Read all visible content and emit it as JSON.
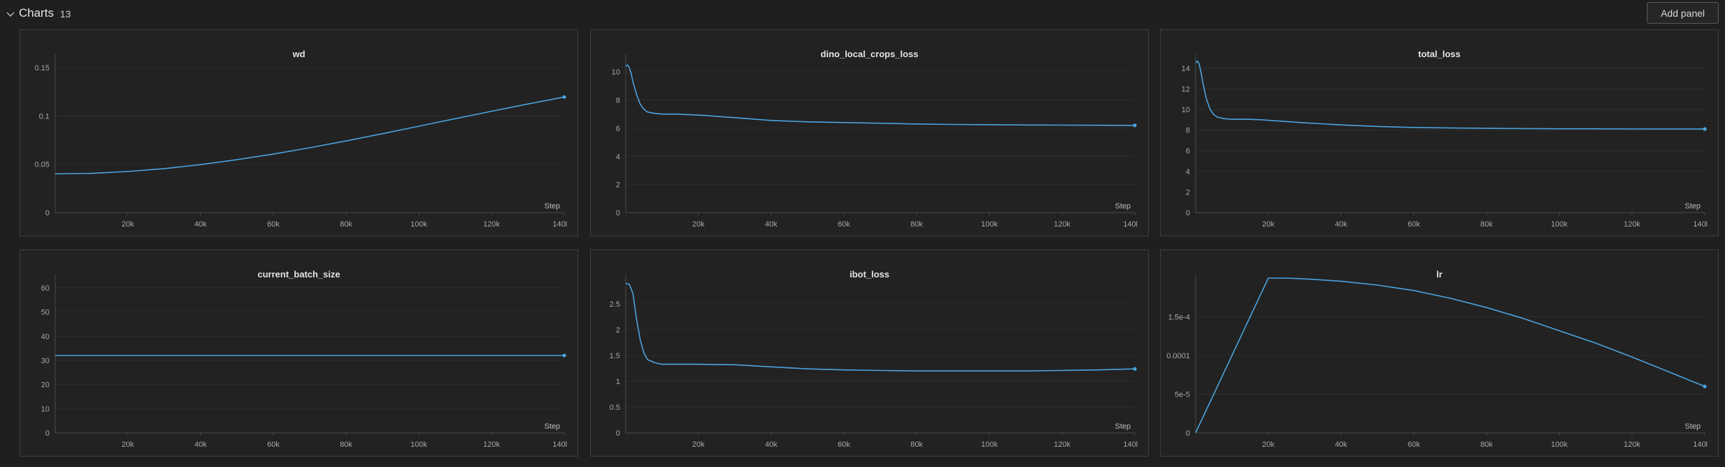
{
  "section": {
    "title": "Charts",
    "count": "13",
    "add_panel_label": "Add panel"
  },
  "colors": {
    "line": "#4aa3df",
    "grid": "#2e2e2e",
    "axis": "#4a4a4a"
  },
  "chart_data": [
    {
      "type": "line",
      "title": "wd",
      "xlabel": "Step",
      "xlim": [
        0,
        140000
      ],
      "x_ticks": [
        20000,
        40000,
        60000,
        80000,
        100000,
        120000,
        140000
      ],
      "x_tick_labels": [
        "20k",
        "40k",
        "60k",
        "80k",
        "100k",
        "120k",
        "140l"
      ],
      "ylim": [
        0,
        0.16
      ],
      "y_ticks": [
        0,
        0.05,
        0.1,
        0.15
      ],
      "y_tick_labels": [
        "0",
        "0.05",
        "0.1",
        "0.15"
      ],
      "series": [
        {
          "x": [
            0,
            10000,
            20000,
            30000,
            40000,
            50000,
            60000,
            70000,
            80000,
            90000,
            100000,
            110000,
            120000,
            130000,
            140000
          ],
          "values": [
            0.04,
            0.0406,
            0.0425,
            0.0455,
            0.0496,
            0.0547,
            0.0605,
            0.067,
            0.0741,
            0.0816,
            0.0893,
            0.0971,
            0.1048,
            0.1123,
            0.1195
          ]
        }
      ]
    },
    {
      "type": "line",
      "title": "dino_local_crops_loss",
      "xlabel": "Step",
      "xlim": [
        0,
        140000
      ],
      "x_ticks": [
        20000,
        40000,
        60000,
        80000,
        100000,
        120000,
        140000
      ],
      "x_tick_labels": [
        "20k",
        "40k",
        "60k",
        "80k",
        "100k",
        "120k",
        "140l"
      ],
      "ylim": [
        0,
        11
      ],
      "y_ticks": [
        0,
        2,
        4,
        6,
        8,
        10
      ],
      "y_tick_labels": [
        "0",
        "2",
        "4",
        "6",
        "8",
        "10"
      ],
      "series": [
        {
          "x": [
            0,
            500,
            1000,
            1500,
            2000,
            3000,
            4000,
            5000,
            6000,
            8000,
            10000,
            14000,
            18000,
            22000,
            30000,
            40000,
            50000,
            60000,
            70000,
            80000,
            90000,
            100000,
            110000,
            120000,
            130000,
            140000
          ],
          "values": [
            10.4,
            10.5,
            10.3,
            9.9,
            9.3,
            8.4,
            7.7,
            7.35,
            7.15,
            7.05,
            7.0,
            7.0,
            6.95,
            6.9,
            6.75,
            6.55,
            6.45,
            6.4,
            6.35,
            6.3,
            6.27,
            6.25,
            6.23,
            6.22,
            6.21,
            6.2
          ]
        }
      ]
    },
    {
      "type": "line",
      "title": "total_loss",
      "xlabel": "Step",
      "xlim": [
        0,
        140000
      ],
      "x_ticks": [
        20000,
        40000,
        60000,
        80000,
        100000,
        120000,
        140000
      ],
      "x_tick_labels": [
        "20k",
        "40k",
        "60k",
        "80k",
        "100k",
        "120k",
        "140l"
      ],
      "ylim": [
        0,
        15
      ],
      "y_ticks": [
        0,
        2,
        4,
        6,
        8,
        10,
        12,
        14
      ],
      "y_tick_labels": [
        "0",
        "2",
        "4",
        "6",
        "8",
        "10",
        "12",
        "14"
      ],
      "series": [
        {
          "x": [
            0,
            500,
            1000,
            1500,
            2000,
            3000,
            4000,
            5000,
            6000,
            8000,
            10000,
            14000,
            18000,
            22000,
            30000,
            40000,
            50000,
            60000,
            70000,
            80000,
            90000,
            100000,
            110000,
            120000,
            130000,
            140000
          ],
          "values": [
            14.5,
            14.7,
            14.4,
            13.6,
            12.6,
            11.0,
            10.0,
            9.5,
            9.25,
            9.1,
            9.05,
            9.05,
            9.0,
            8.9,
            8.7,
            8.5,
            8.35,
            8.25,
            8.2,
            8.17,
            8.15,
            8.13,
            8.12,
            8.11,
            8.1,
            8.1
          ]
        }
      ]
    },
    {
      "type": "line",
      "title": "current_batch_size",
      "xlabel": "Step",
      "xlim": [
        0,
        140000
      ],
      "x_ticks": [
        20000,
        40000,
        60000,
        80000,
        100000,
        120000,
        140000
      ],
      "x_tick_labels": [
        "20k",
        "40k",
        "60k",
        "80k",
        "100k",
        "120k",
        "140l"
      ],
      "ylim": [
        0,
        64
      ],
      "y_ticks": [
        0,
        10,
        20,
        30,
        40,
        50,
        60
      ],
      "y_tick_labels": [
        "0",
        "10",
        "20",
        "30",
        "40",
        "50",
        "60"
      ],
      "series": [
        {
          "x": [
            0,
            140000
          ],
          "values": [
            32,
            32
          ]
        }
      ]
    },
    {
      "type": "line",
      "title": "ibot_loss",
      "xlabel": "Step",
      "xlim": [
        0,
        140000
      ],
      "x_ticks": [
        20000,
        40000,
        60000,
        80000,
        100000,
        120000,
        140000
      ],
      "x_tick_labels": [
        "20k",
        "40k",
        "60k",
        "80k",
        "100k",
        "120k",
        "140l"
      ],
      "ylim": [
        0,
        3
      ],
      "y_ticks": [
        0,
        0.5,
        1,
        1.5,
        2,
        2.5
      ],
      "y_tick_labels": [
        "0",
        "0.5",
        "1",
        "1.5",
        "2",
        "2.5"
      ],
      "series": [
        {
          "x": [
            0,
            1000,
            2000,
            3000,
            4000,
            5000,
            6000,
            8000,
            10000,
            14000,
            20000,
            30000,
            40000,
            50000,
            60000,
            70000,
            80000,
            90000,
            100000,
            110000,
            120000,
            130000,
            140000
          ],
          "values": [
            2.9,
            2.88,
            2.7,
            2.2,
            1.8,
            1.55,
            1.42,
            1.36,
            1.33,
            1.33,
            1.33,
            1.32,
            1.28,
            1.24,
            1.22,
            1.21,
            1.2,
            1.2,
            1.2,
            1.2,
            1.21,
            1.22,
            1.24
          ]
        }
      ]
    },
    {
      "type": "line",
      "title": "lr",
      "xlabel": "Step",
      "xlim": [
        0,
        140000
      ],
      "x_ticks": [
        20000,
        40000,
        60000,
        80000,
        100000,
        120000,
        140000
      ],
      "x_tick_labels": [
        "20k",
        "40k",
        "60k",
        "80k",
        "100k",
        "120k",
        "140l"
      ],
      "ylim": [
        0,
        0.0002
      ],
      "y_ticks": [
        0,
        5e-05,
        0.0001,
        0.00015
      ],
      "y_tick_labels": [
        "0",
        "5e-5",
        "0.0001",
        "1.5e-4"
      ],
      "series": [
        {
          "x": [
            0,
            20000,
            25000,
            30000,
            40000,
            50000,
            60000,
            70000,
            80000,
            90000,
            100000,
            110000,
            120000,
            130000,
            140000
          ],
          "values": [
            0,
            0.0002,
            0.0002,
            0.000199,
            0.000196,
            0.000191,
            0.000184,
            0.000174,
            0.000162,
            0.000148,
            0.000132,
            0.000116,
            9.8e-05,
            7.9e-05,
            6e-05
          ]
        }
      ]
    }
  ]
}
